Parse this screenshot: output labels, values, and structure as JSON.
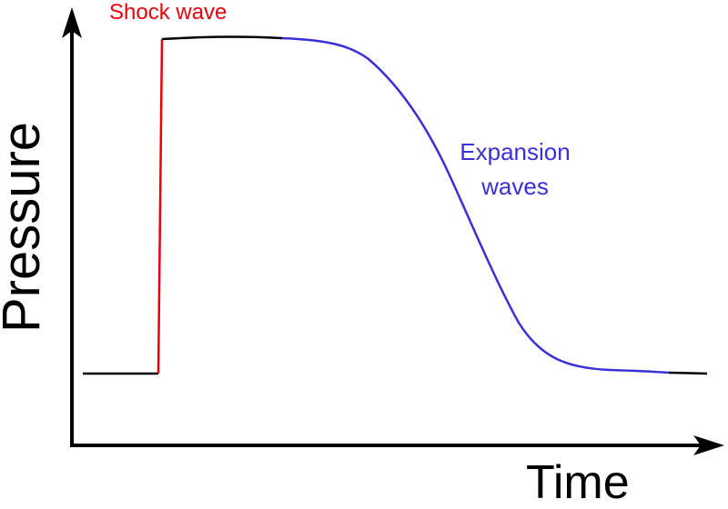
{
  "diagram": {
    "shock_label": "Shock wave",
    "expansion_label_line1": "Expansion",
    "expansion_label_line2": "waves",
    "y_axis_label": "Pressure",
    "x_axis_label": "Time",
    "colors": {
      "shock": "#e8000b",
      "expansion": "#3b2fd6",
      "axis": "#000000",
      "baseline": "#000000"
    }
  }
}
